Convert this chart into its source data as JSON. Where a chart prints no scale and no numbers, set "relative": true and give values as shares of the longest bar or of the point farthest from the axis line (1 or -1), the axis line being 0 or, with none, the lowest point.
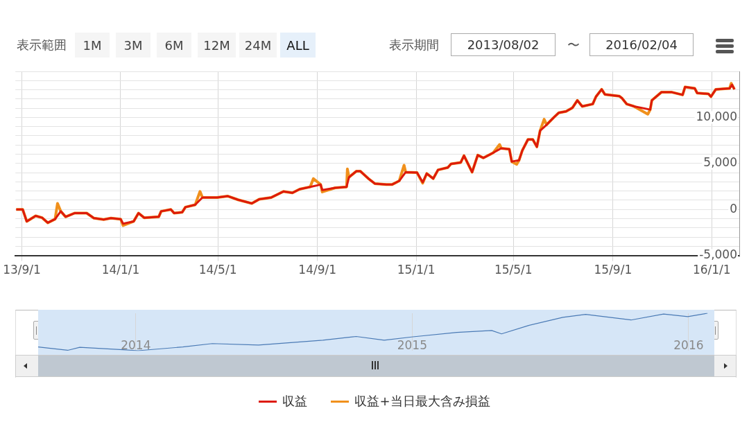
{
  "chart_data": [
    {
      "type": "line",
      "annotations": [
        "表示範囲",
        "1M",
        "3M",
        "6M",
        "12M",
        "24M",
        "ALL",
        "表示期間",
        "2013/08/02",
        "〜",
        "2016/02/04"
      ],
      "xlim": [
        "2013-08-24",
        "2016-02-04"
      ],
      "xticks": [
        {
          "value": "2013-09-01",
          "label": "13/9/1"
        },
        {
          "value": "2014-01-01",
          "label": "14/1/1"
        },
        {
          "value": "2014-05-01",
          "label": "14/5/1"
        },
        {
          "value": "2014-09-01",
          "label": "14/9/1"
        },
        {
          "value": "2015-01-01",
          "label": "15/1/1"
        },
        {
          "value": "2015-05-01",
          "label": "15/5/1"
        },
        {
          "value": "2015-09-01",
          "label": "15/9/1"
        },
        {
          "value": "2016-01-01",
          "label": "16/1/1"
        }
      ],
      "ylim": [
        -5000,
        15000
      ],
      "yticks": [
        {
          "value": -5000,
          "label": "-5,000"
        },
        {
          "value": -4000,
          "label": null
        },
        {
          "value": -3000,
          "label": null
        },
        {
          "value": -2000,
          "label": null
        },
        {
          "value": -1000,
          "label": null
        },
        0,
        {
          "value": 1000,
          "label": null
        },
        {
          "value": 2000,
          "label": null
        },
        {
          "value": 3000,
          "label": null
        },
        {
          "value": 4000,
          "label": null
        },
        {
          "value": 5000,
          "label": "5,000"
        },
        {
          "value": 6000,
          "label": null
        },
        {
          "value": 7000,
          "label": null
        },
        {
          "value": 8000,
          "label": null
        },
        {
          "value": 9000,
          "label": null
        },
        {
          "value": 10000,
          "label": "10,000"
        },
        {
          "value": 11000,
          "label": null
        },
        {
          "value": 12000,
          "label": null
        },
        {
          "value": 13000,
          "label": null
        },
        {
          "value": 14000,
          "label": null
        },
        {
          "value": 15000,
          "label": null
        }
      ],
      "grid": true,
      "legend": "bottom",
      "marker": "none",
      "line_style": "solid",
      "series": [
        {
          "name": "収益",
          "color": "#dd1a0c",
          "x": [
            "2013-08-25",
            "2013-09-02",
            "2013-09-07",
            "2013-09-18",
            "2013-09-26",
            "2013-10-03",
            "2013-10-12",
            "2013-10-19",
            "2013-10-25",
            "2013-11-05",
            "2013-11-20",
            "2013-11-29",
            "2013-12-11",
            "2013-12-20",
            "2014-01-01",
            "2014-01-04",
            "2014-01-17",
            "2014-01-23",
            "2014-01-30",
            "2014-02-17",
            "2014-02-20",
            "2014-03-04",
            "2014-03-08",
            "2014-03-18",
            "2014-03-22",
            "2014-04-03",
            "2014-04-12",
            "2014-04-30",
            "2014-05-13",
            "2014-05-26",
            "2014-06-12",
            "2014-06-21",
            "2014-07-06",
            "2014-07-21",
            "2014-08-01",
            "2014-08-10",
            "2014-08-23",
            "2014-09-05",
            "2014-09-07",
            "2014-09-23",
            "2014-10-07",
            "2014-10-10",
            "2014-10-19",
            "2014-10-24",
            "2014-11-03",
            "2014-11-11",
            "2014-11-25",
            "2014-12-02",
            "2014-12-11",
            "2014-12-19",
            "2015-01-02",
            "2015-01-09",
            "2015-01-14",
            "2015-01-22",
            "2015-01-28",
            "2015-02-09",
            "2015-02-13",
            "2015-02-25",
            "2015-03-01",
            "2015-03-11",
            "2015-03-18",
            "2015-03-25",
            "2015-04-06",
            "2015-04-16",
            "2015-04-26",
            "2015-04-29",
            "2015-05-08",
            "2015-05-12",
            "2015-05-19",
            "2015-05-25",
            "2015-05-30",
            "2015-06-03",
            "2015-06-11",
            "2015-06-20",
            "2015-06-26",
            "2015-07-05",
            "2015-07-13",
            "2015-07-19",
            "2015-07-25",
            "2015-08-07",
            "2015-08-11",
            "2015-08-18",
            "2015-08-22",
            "2015-09-09",
            "2015-09-12",
            "2015-09-18",
            "2015-09-27",
            "2015-10-17",
            "2015-10-19",
            "2015-10-31",
            "2015-11-12",
            "2015-11-26",
            "2015-11-29",
            "2015-12-11",
            "2015-12-14",
            "2015-12-28",
            "2015-12-31",
            "2016-01-06",
            "2016-01-23",
            "2016-01-26",
            "2016-01-29"
          ],
          "values": [
            0,
            0,
            -1300,
            -700,
            -900,
            -1450,
            -1050,
            -200,
            -800,
            -400,
            -400,
            -950,
            -1100,
            -950,
            -1050,
            -1550,
            -1300,
            -400,
            -900,
            -800,
            -200,
            0,
            -400,
            -300,
            250,
            500,
            1300,
            1300,
            1450,
            1050,
            650,
            1100,
            1300,
            1950,
            1800,
            2200,
            2450,
            2700,
            2100,
            2350,
            2450,
            3500,
            4150,
            4150,
            3350,
            2800,
            2700,
            2700,
            3100,
            4050,
            4000,
            2950,
            3900,
            3350,
            4300,
            4550,
            4950,
            5100,
            5850,
            4050,
            5900,
            5600,
            6150,
            6650,
            6550,
            5200,
            5350,
            6400,
            7600,
            7600,
            6800,
            8550,
            9200,
            10000,
            10500,
            10650,
            11050,
            11850,
            11200,
            11450,
            12250,
            13050,
            12500,
            12300,
            12100,
            11450,
            11200,
            10850,
            11850,
            12750,
            12750,
            12450,
            13300,
            13150,
            12650,
            12550,
            12250,
            13050,
            13150,
            13550,
            13050
          ]
        },
        {
          "name": "収益+当日最大含み損益",
          "color": "#f0901c",
          "x": [
            "2013-08-25",
            "2013-09-02",
            "2013-09-07",
            "2013-09-18",
            "2013-09-26",
            "2013-10-03",
            "2013-10-12",
            "2013-10-15",
            "2013-10-19",
            "2013-10-25",
            "2013-11-05",
            "2013-11-20",
            "2013-11-29",
            "2013-12-11",
            "2013-12-20",
            "2014-01-01",
            "2014-01-04",
            "2014-01-17",
            "2014-01-23",
            "2014-01-30",
            "2014-02-17",
            "2014-02-20",
            "2014-03-04",
            "2014-03-08",
            "2014-03-18",
            "2014-03-22",
            "2014-04-03",
            "2014-04-09",
            "2014-04-12",
            "2014-04-30",
            "2014-05-13",
            "2014-05-26",
            "2014-06-12",
            "2014-06-21",
            "2014-07-06",
            "2014-07-21",
            "2014-08-01",
            "2014-08-10",
            "2014-08-23",
            "2014-08-27",
            "2014-09-05",
            "2014-09-07",
            "2014-09-23",
            "2014-10-07",
            "2014-10-08",
            "2014-10-10",
            "2014-10-19",
            "2014-10-24",
            "2014-11-03",
            "2014-11-11",
            "2014-11-25",
            "2014-12-02",
            "2014-12-11",
            "2014-12-17",
            "2014-12-19",
            "2015-01-02",
            "2015-01-09",
            "2015-01-14",
            "2015-01-22",
            "2015-01-28",
            "2015-02-09",
            "2015-02-13",
            "2015-02-25",
            "2015-03-01",
            "2015-03-11",
            "2015-03-18",
            "2015-03-25",
            "2015-04-06",
            "2015-04-14",
            "2015-04-16",
            "2015-04-26",
            "2015-04-29",
            "2015-05-05",
            "2015-05-08",
            "2015-05-12",
            "2015-05-19",
            "2015-05-25",
            "2015-05-30",
            "2015-06-03",
            "2015-06-08",
            "2015-06-11",
            "2015-06-20",
            "2015-06-26",
            "2015-07-05",
            "2015-07-13",
            "2015-07-19",
            "2015-07-25",
            "2015-08-07",
            "2015-08-11",
            "2015-08-18",
            "2015-08-22",
            "2015-09-09",
            "2015-09-12",
            "2015-09-18",
            "2015-09-27",
            "2015-10-14",
            "2015-10-17",
            "2015-10-19",
            "2015-10-31",
            "2015-11-12",
            "2015-11-26",
            "2015-11-29",
            "2015-12-11",
            "2015-12-14",
            "2015-12-28",
            "2015-12-31",
            "2016-01-06",
            "2016-01-23",
            "2016-01-25",
            "2016-01-29"
          ],
          "values": [
            0,
            0,
            -1300,
            -700,
            -900,
            -1450,
            -1050,
            650,
            -200,
            -800,
            -400,
            -400,
            -950,
            -1100,
            -950,
            -1050,
            -1750,
            -1300,
            -400,
            -900,
            -800,
            -200,
            0,
            -400,
            -300,
            250,
            500,
            1950,
            1300,
            1300,
            1450,
            1050,
            650,
            1100,
            1300,
            1950,
            1800,
            2200,
            2450,
            3350,
            2700,
            1900,
            2350,
            2450,
            4400,
            3500,
            4150,
            4150,
            3350,
            2800,
            2700,
            2700,
            3100,
            4800,
            4050,
            4000,
            2850,
            3900,
            3350,
            4300,
            4550,
            4950,
            5100,
            5850,
            4050,
            5900,
            5600,
            6150,
            7050,
            6650,
            6550,
            5200,
            4900,
            5350,
            6400,
            7600,
            7600,
            6800,
            8550,
            9800,
            9200,
            10000,
            10500,
            10650,
            11050,
            11850,
            11200,
            11450,
            12250,
            13050,
            12500,
            12300,
            12100,
            11450,
            11200,
            10350,
            10850,
            11850,
            12750,
            12750,
            12450,
            13300,
            13150,
            12650,
            12550,
            12250,
            13050,
            13150,
            13700,
            13050
          ]
        }
      ]
    },
    {
      "type": "line",
      "xlim": [
        "2013-08-25",
        "2016-02-04"
      ],
      "xticks": [
        {
          "value": "2014-01-01",
          "label": "2014"
        },
        {
          "value": "2015-01-01",
          "label": "2015"
        },
        {
          "value": "2016-01-01",
          "label": "2016"
        }
      ],
      "grid": "x",
      "relative": true,
      "tick_labels": "x",
      "marker": "none",
      "series": [
        {
          "color": "#4a7ab5",
          "x": [
            "2013-08-25",
            "2013-10-03",
            "2013-10-19",
            "2013-12-11",
            "2014-01-04",
            "2014-03-04",
            "2014-04-12",
            "2014-06-12",
            "2014-09-05",
            "2014-10-19",
            "2014-11-25",
            "2015-01-02",
            "2015-03-01",
            "2015-04-16",
            "2015-04-29",
            "2015-06-03",
            "2015-07-19",
            "2015-08-18",
            "2015-10-17",
            "2015-11-29",
            "2015-12-31",
            "2016-01-26"
          ],
          "values": [
            0.1,
            0.01,
            0.09,
            0.03,
            0,
            0.1,
            0.19,
            0.15,
            0.28,
            0.38,
            0.28,
            0.37,
            0.49,
            0.54,
            0.45,
            0.67,
            0.89,
            0.97,
            0.82,
            0.98,
            0.91,
            1
          ]
        }
      ]
    }
  ]
}
